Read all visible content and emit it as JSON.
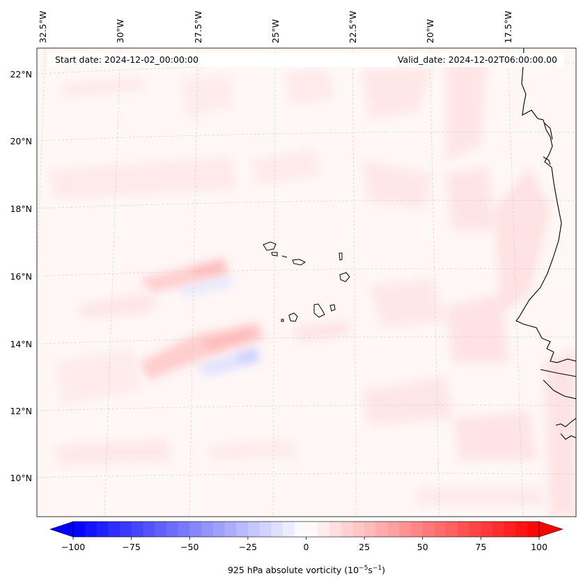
{
  "header": {
    "start_date": "Start date: 2024-12-02_00:00:00",
    "valid_date": "Valid_date: 2024-12-02T06:00:00.00"
  },
  "map": {
    "projection": "conic",
    "lon_labels": [
      "32.5°W",
      "30°W",
      "27.5°W",
      "25°W",
      "22.5°W",
      "20°W",
      "17.5°W"
    ],
    "lat_labels": [
      "22°N",
      "20°N",
      "18°N",
      "16°N",
      "14°N",
      "12°N",
      "10°N"
    ],
    "gridlines": true,
    "features": [
      "Cabo Verde islands",
      "West African coastline"
    ]
  },
  "colorbar": {
    "label_prefix": "925 hPa absolute vorticity (10",
    "label_exp1": "−5",
    "label_mid": "s",
    "label_exp2": "−1",
    "label_suffix": ")",
    "min": -100,
    "max": 100,
    "ticks": [
      "−100",
      "−75",
      "−50",
      "−25",
      "0",
      "25",
      "50",
      "75",
      "100"
    ],
    "colors": {
      "negative": "#0000ff",
      "zero": "#ffffff",
      "positive": "#ff0000"
    },
    "extend": "both"
  }
}
